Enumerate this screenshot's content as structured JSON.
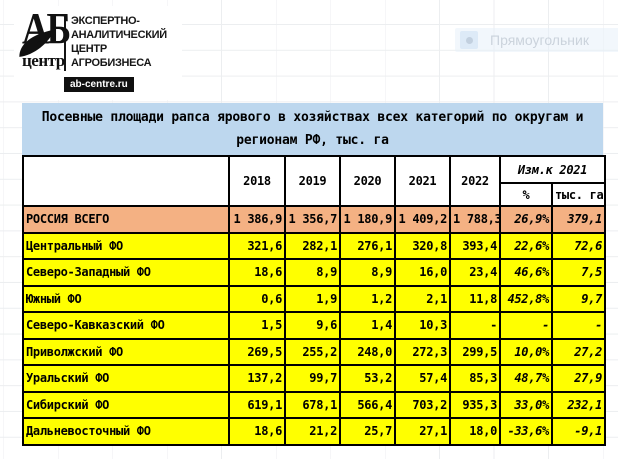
{
  "logo": {
    "abbr": "АБ",
    "abbr_sub": "центр",
    "org_lines": [
      "ЭКСПЕРТНО-",
      "АНАЛИТИЧЕСКИЙ",
      "ЦЕНТР",
      "АГРОБИЗНЕСА"
    ],
    "site": "ab-centre.ru"
  },
  "tooltip": {
    "label": "Прямоугольник"
  },
  "table": {
    "title_lines": [
      "Посевные площади рапса ярового в хозяйствах всех категорий по округам и",
      "регионам РФ, тыс. га"
    ],
    "years": [
      "2018",
      "2019",
      "2020",
      "2021",
      "2022"
    ],
    "change_header": "Изм.к 2021",
    "pct_header": "%",
    "unit_header": "тыс. га",
    "rows": [
      {
        "name": "РОССИЯ ВСЕГО",
        "values": [
          "1 386,9",
          "1 356,7",
          "1 180,9",
          "1 409,2",
          "1 788,3"
        ],
        "pct": "26,9%",
        "abs": "379,1",
        "highlight": true
      },
      {
        "name": "Центральный ФО",
        "values": [
          "321,6",
          "282,1",
          "276,1",
          "320,8",
          "393,4"
        ],
        "pct": "22,6%",
        "abs": "72,6",
        "highlight": false
      },
      {
        "name": "Северо-Западный ФО",
        "values": [
          "18,6",
          "8,9",
          "8,9",
          "16,0",
          "23,4"
        ],
        "pct": "46,6%",
        "abs": "7,5",
        "highlight": false
      },
      {
        "name": "Южный ФО",
        "values": [
          "0,6",
          "1,9",
          "1,2",
          "2,1",
          "11,8"
        ],
        "pct": "452,8%",
        "abs": "9,7",
        "highlight": false
      },
      {
        "name": "Северо-Кавказский ФО",
        "values": [
          "1,5",
          "9,6",
          "1,4",
          "10,3",
          "-"
        ],
        "pct": "-",
        "abs": "-",
        "highlight": false
      },
      {
        "name": "Приволжский ФО",
        "values": [
          "269,5",
          "255,2",
          "248,0",
          "272,3",
          "299,5"
        ],
        "pct": "10,0%",
        "abs": "27,2",
        "highlight": false
      },
      {
        "name": "Уральский ФО",
        "values": [
          "137,2",
          "99,7",
          "53,2",
          "57,4",
          "85,3"
        ],
        "pct": "48,7%",
        "abs": "27,9",
        "highlight": false
      },
      {
        "name": "Сибирский ФО",
        "values": [
          "619,1",
          "678,1",
          "566,4",
          "703,2",
          "935,3"
        ],
        "pct": "33,0%",
        "abs": "232,1",
        "highlight": false
      },
      {
        "name": "Дальневосточный ФО",
        "values": [
          "18,6",
          "21,2",
          "25,7",
          "27,1",
          "18,0"
        ],
        "pct": "-33,6%",
        "abs": "-9,1",
        "highlight": false
      }
    ]
  },
  "colors": {
    "title_bg": "#bdd7ee",
    "total_row_bg": "#f4b183",
    "data_row_bg": "#ffff00",
    "border": "#000000"
  }
}
